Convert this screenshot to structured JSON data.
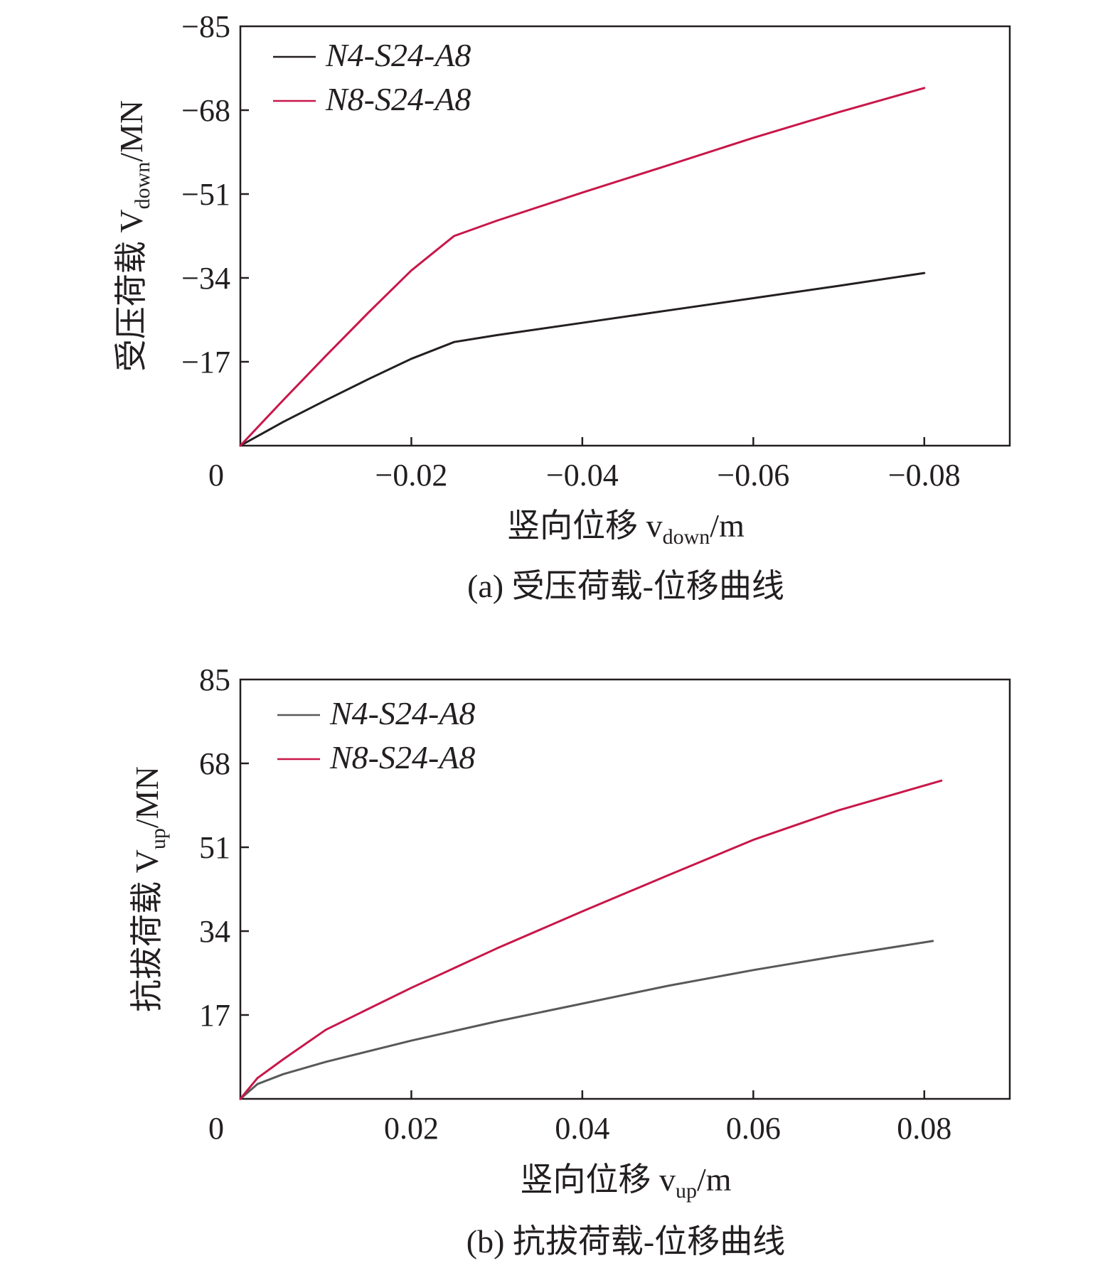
{
  "chart_data": [
    {
      "type": "line",
      "panel": "a",
      "caption": "(a) 受压荷载-位移曲线",
      "xlabel": "竖向位移 v",
      "xlabel_sub": "down",
      "xlabel_unit": "/m",
      "ylabel": "受压荷载 V",
      "ylabel_sub": "down",
      "ylabel_unit": "/MN",
      "xlim": [
        0,
        -0.09
      ],
      "ylim": [
        0,
        -85
      ],
      "x_ticks": [
        0,
        -0.02,
        -0.04,
        -0.06,
        -0.08
      ],
      "x_tick_labels": [
        "0",
        "−0.02",
        "−0.04",
        "−0.06",
        "−0.08"
      ],
      "y_ticks": [
        -17,
        -34,
        -51,
        -68,
        -85
      ],
      "y_tick_labels": [
        "−17",
        "−34",
        "−51",
        "−68",
        "−85"
      ],
      "grid": false,
      "legend_position": "top-left",
      "series": [
        {
          "name": "N4-S24-A8",
          "color": "#231f20",
          "x": [
            0,
            -0.005,
            -0.01,
            -0.015,
            -0.02,
            -0.025,
            -0.03,
            -0.04,
            -0.05,
            -0.06,
            -0.07,
            -0.08
          ],
          "y": [
            0,
            -4.8,
            -9.2,
            -13.5,
            -17.6,
            -21.0,
            -22.4,
            -24.9,
            -27.4,
            -29.9,
            -32.4,
            -35.0
          ]
        },
        {
          "name": "N8-S24-A8",
          "color": "#c8174a",
          "x": [
            0,
            -0.005,
            -0.01,
            -0.015,
            -0.02,
            -0.025,
            -0.03,
            -0.04,
            -0.05,
            -0.06,
            -0.07,
            -0.08
          ],
          "y": [
            0,
            -9.2,
            -18.2,
            -27.0,
            -35.5,
            -42.5,
            -45.6,
            -51.3,
            -56.8,
            -62.4,
            -67.6,
            -72.5
          ]
        }
      ]
    },
    {
      "type": "line",
      "panel": "b",
      "caption": "(b) 抗拔荷载-位移曲线",
      "xlabel": "竖向位移 v",
      "xlabel_sub": "up",
      "xlabel_unit": "/m",
      "ylabel": "抗拔荷载 V",
      "ylabel_sub": "up",
      "ylabel_unit": "/MN",
      "xlim": [
        0,
        0.09
      ],
      "ylim": [
        0,
        85
      ],
      "x_ticks": [
        0,
        0.02,
        0.04,
        0.06,
        0.08
      ],
      "x_tick_labels": [
        "0",
        "0.02",
        "0.04",
        "0.06",
        "0.08"
      ],
      "y_ticks": [
        17,
        34,
        51,
        68,
        85
      ],
      "y_tick_labels": [
        "17",
        "34",
        "51",
        "68",
        "85"
      ],
      "grid": false,
      "legend_position": "top-left",
      "series": [
        {
          "name": "N4-S24-A8",
          "color": "#58595b",
          "x": [
            0,
            0.002,
            0.005,
            0.01,
            0.02,
            0.03,
            0.04,
            0.05,
            0.06,
            0.07,
            0.081
          ],
          "y": [
            0,
            3.0,
            5.0,
            7.5,
            11.8,
            15.7,
            19.3,
            22.9,
            26.1,
            29.0,
            32.0
          ]
        },
        {
          "name": "N8-S24-A8",
          "color": "#c8174a",
          "x": [
            0,
            0.002,
            0.005,
            0.01,
            0.02,
            0.03,
            0.04,
            0.05,
            0.06,
            0.07,
            0.082
          ],
          "y": [
            0,
            4.2,
            8.0,
            14.0,
            22.5,
            30.5,
            38.0,
            45.3,
            52.5,
            58.5,
            64.5
          ]
        }
      ]
    }
  ]
}
